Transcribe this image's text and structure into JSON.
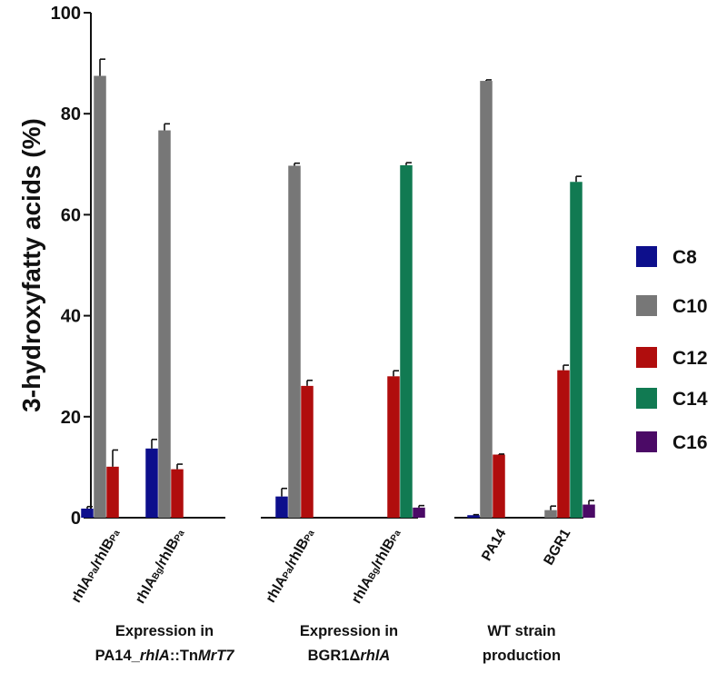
{
  "chart_data": {
    "type": "bar",
    "ylabel": "3-hydroxyfatty acids (%)",
    "ylim": [
      0,
      100
    ],
    "yticks": [
      "0",
      "20",
      "40",
      "60",
      "80",
      "100"
    ],
    "colors": {
      "C8": "#0d0f8c",
      "C10": "#777777",
      "C12": "#b00d0d",
      "C14": "#117a52",
      "C16": "#4b0a66"
    },
    "legend": [
      "C8",
      "C10",
      "C12",
      "C14",
      "C16"
    ],
    "groups": [
      {
        "label_line1": "Expression in",
        "label_line2": "PA14_rhlA::TnMrT7",
        "label_line2_parts": [
          "PA14_",
          "rhlA",
          "::Tn",
          "MrT7"
        ],
        "categories": [
          {
            "label": "rhlAPa/rhlBPa",
            "parts": [
              [
                "rhlA",
                "main"
              ],
              [
                "Pa",
                "sub"
              ],
              [
                "/rhlB",
                "main"
              ],
              [
                "Pa",
                "sub"
              ]
            ],
            "bars": [
              {
                "series": "C8",
                "value": 1.8,
                "err": 0.4
              },
              {
                "series": "C10",
                "value": 87.5,
                "err": 3.3
              },
              {
                "series": "C12",
                "value": 10.1,
                "err": 3.3
              }
            ]
          },
          {
            "label": "rhlABg/rhlBPa",
            "parts": [
              [
                "rhlA",
                "main"
              ],
              [
                "Bg",
                "sub"
              ],
              [
                "/rhlB",
                "main"
              ],
              [
                "Pa",
                "sub"
              ]
            ],
            "bars": [
              {
                "series": "C8",
                "value": 13.7,
                "err": 1.8
              },
              {
                "series": "C10",
                "value": 76.7,
                "err": 1.3
              },
              {
                "series": "C12",
                "value": 9.6,
                "err": 1.0
              }
            ]
          }
        ]
      },
      {
        "label_line1": "Expression in",
        "label_line2": "BGR1ΔrhlA",
        "label_line2_parts": [
          "BGR1Δ",
          "rhlA"
        ],
        "categories": [
          {
            "label": "rhlAPa/rhlBPa",
            "parts": [
              [
                "rhlA",
                "main"
              ],
              [
                "Pa",
                "sub"
              ],
              [
                "/rhlB",
                "main"
              ],
              [
                "Pa",
                "sub"
              ]
            ],
            "bars": [
              {
                "series": "C8",
                "value": 4.2,
                "err": 1.6
              },
              {
                "series": "C10",
                "value": 69.7,
                "err": 0.5
              },
              {
                "series": "C12",
                "value": 26.1,
                "err": 1.1
              }
            ]
          },
          {
            "label": "rhlABg/rhlBPa",
            "parts": [
              [
                "rhlA",
                "main"
              ],
              [
                "Bg",
                "sub"
              ],
              [
                "/rhlB",
                "main"
              ],
              [
                "Pa",
                "sub"
              ]
            ],
            "bars": [
              {
                "series": "C12",
                "value": 28.0,
                "err": 1.1
              },
              {
                "series": "C14",
                "value": 69.8,
                "err": 0.5
              },
              {
                "series": "C16",
                "value": 2.0,
                "err": 0.4
              }
            ]
          }
        ]
      },
      {
        "label_line1": "WT strain",
        "label_line2": "production",
        "label_line2_parts": [
          "production"
        ],
        "categories": [
          {
            "label": "PA14",
            "parts": [
              [
                "PA14",
                "main"
              ]
            ],
            "bars": [
              {
                "series": "C8",
                "value": 0.5,
                "err": 0.1
              },
              {
                "series": "C10",
                "value": 86.5,
                "err": 0.2
              },
              {
                "series": "C12",
                "value": 12.5,
                "err": 0.1
              }
            ]
          },
          {
            "label": "BGR1",
            "parts": [
              [
                "BGR1",
                "main"
              ]
            ],
            "bars": [
              {
                "series": "C10",
                "value": 1.5,
                "err": 0.8
              },
              {
                "series": "C12",
                "value": 29.2,
                "err": 1.0
              },
              {
                "series": "C14",
                "value": 66.5,
                "err": 1.1
              },
              {
                "series": "C16",
                "value": 2.6,
                "err": 0.8
              }
            ]
          }
        ]
      }
    ]
  }
}
